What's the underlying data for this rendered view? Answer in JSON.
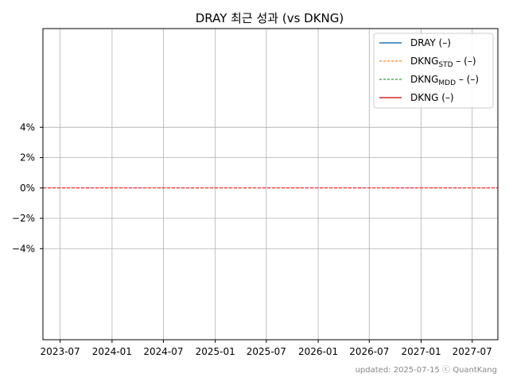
{
  "chart_data": {
    "type": "line",
    "title": "DRAY 최근 성과 (vs DKNG)",
    "xlabel": "",
    "ylabel": "",
    "x_ticks": [
      "2023-07",
      "2024-01",
      "2024-07",
      "2025-01",
      "2025-07",
      "2026-01",
      "2026-07",
      "2027-01",
      "2027-07"
    ],
    "y_ticks": [
      {
        "value": 4,
        "label": "4%"
      },
      {
        "value": 2,
        "label": "2%"
      },
      {
        "value": 0,
        "label": "0%"
      },
      {
        "value": -2,
        "label": "−2%"
      },
      {
        "value": -4,
        "label": "−4%"
      }
    ],
    "ylim": [
      -10,
      10.5
    ],
    "xlim": [
      "2023-05-01",
      "2027-09-30"
    ],
    "grid": true,
    "legend_position": "top-right",
    "reference_line": {
      "value": 0,
      "color": "#ff0000",
      "style": "dashed"
    },
    "series": [
      {
        "name": "DRAY",
        "suffix": " (–)",
        "sub": "",
        "color": "#1f77b4",
        "style": "solid",
        "values": []
      },
      {
        "name": "DKNG",
        "suffix": " – (–)",
        "sub": "STD",
        "color": "#ff7f0e",
        "style": "dashed",
        "values": []
      },
      {
        "name": "DKNG",
        "suffix": " – (–)",
        "sub": "MDD",
        "color": "#2ca02c",
        "style": "dashed",
        "values": []
      },
      {
        "name": "DKNG",
        "suffix": " (–)",
        "sub": "",
        "color": "#d62728",
        "style": "solid",
        "values": []
      }
    ]
  },
  "footer": "updated: 2025-07-15 ⓒ QuantKang"
}
